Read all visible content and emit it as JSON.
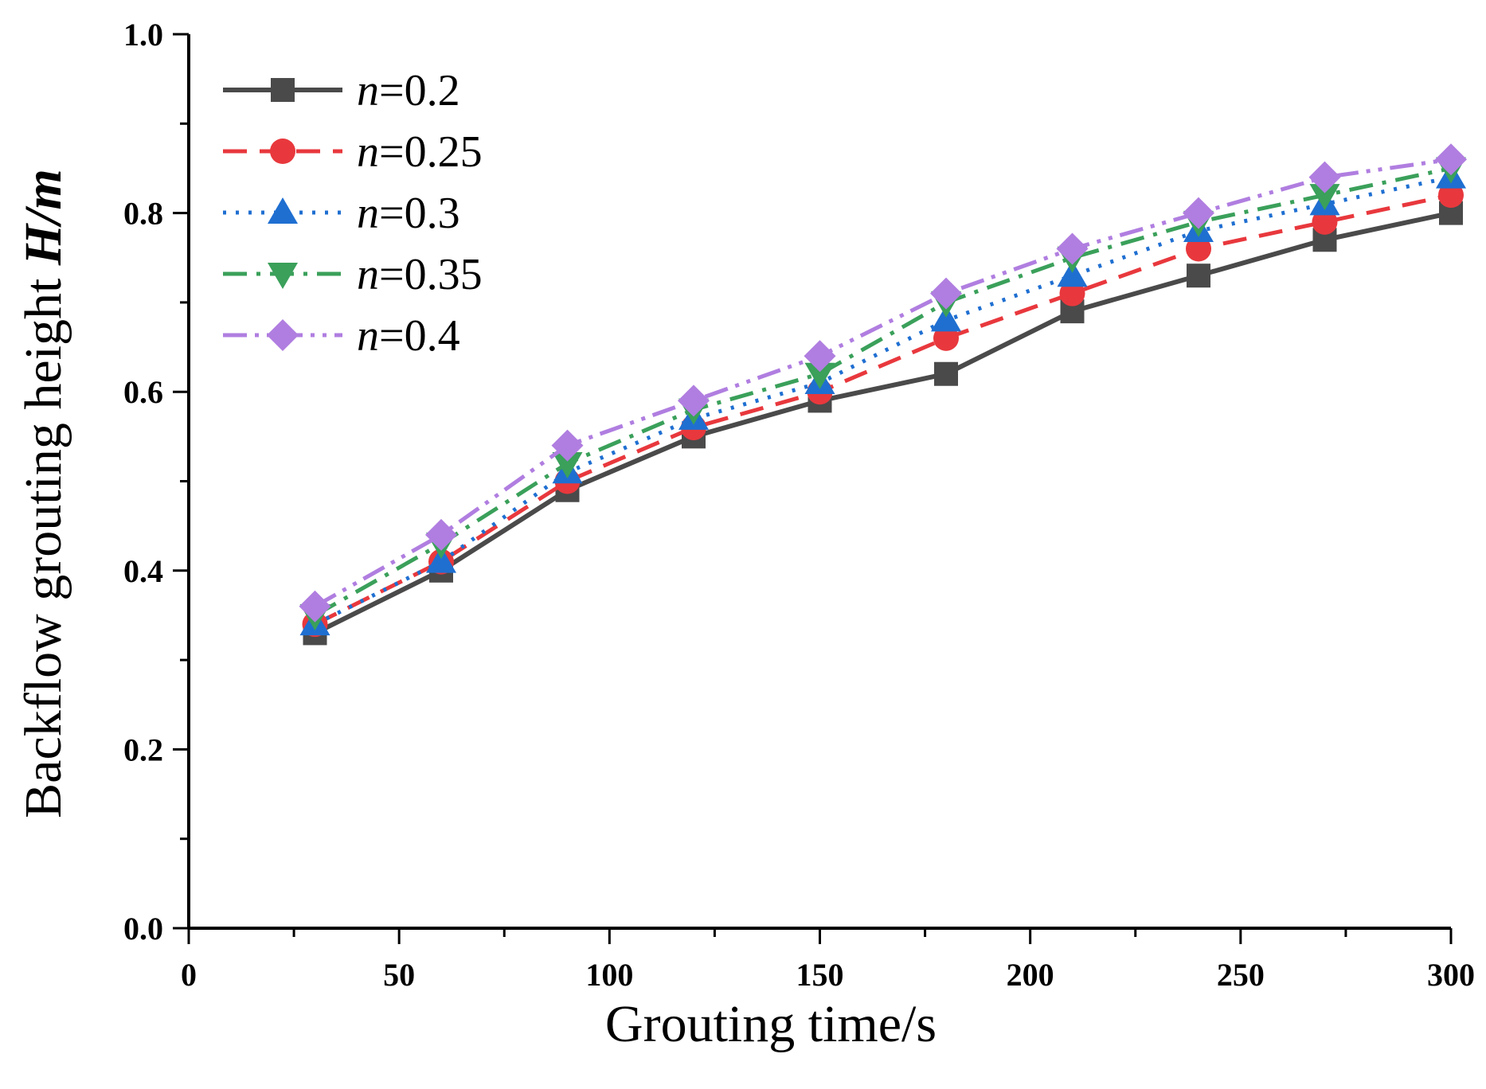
{
  "chart_data": {
    "type": "line",
    "title": "",
    "xlabel": "Grouting time/s",
    "ylabel": {
      "prefix": "Backflow grouting height ",
      "symbol": "H/m"
    },
    "xlim": [
      0,
      300
    ],
    "ylim": [
      0.0,
      1.0
    ],
    "xticks": [
      "0",
      "50",
      "100",
      "150",
      "200",
      "250",
      "300"
    ],
    "yticks": [
      "0.0",
      "0.2",
      "0.4",
      "0.6",
      "0.8",
      "1.0"
    ],
    "x": [
      30,
      60,
      90,
      120,
      150,
      180,
      210,
      240,
      270,
      300
    ],
    "legend_position": "top-left",
    "series": [
      {
        "name": "n=0.2",
        "var": "n",
        "eq": "=0.2",
        "color": "#4a4a4a",
        "marker": "square",
        "line": "solid",
        "values": [
          0.33,
          0.4,
          0.49,
          0.55,
          0.59,
          0.62,
          0.69,
          0.73,
          0.77,
          0.8
        ]
      },
      {
        "name": "n=0.25",
        "var": "n",
        "eq": "=0.25",
        "color": "#e8383d",
        "marker": "circle",
        "line": "dashed",
        "values": [
          0.34,
          0.41,
          0.5,
          0.56,
          0.6,
          0.66,
          0.71,
          0.76,
          0.79,
          0.82
        ]
      },
      {
        "name": "n=0.3",
        "var": "n",
        "eq": "=0.3",
        "color": "#1f6fd1",
        "marker": "triangle-up",
        "line": "dotted",
        "values": [
          0.34,
          0.41,
          0.51,
          0.57,
          0.61,
          0.68,
          0.73,
          0.78,
          0.81,
          0.84
        ]
      },
      {
        "name": "n=0.35",
        "var": "n",
        "eq": "=0.35",
        "color": "#3aa05a",
        "marker": "triangle-down",
        "line": "dashdot",
        "values": [
          0.35,
          0.43,
          0.52,
          0.58,
          0.62,
          0.7,
          0.75,
          0.79,
          0.82,
          0.85
        ]
      },
      {
        "name": "n=0.4",
        "var": "n",
        "eq": "=0.4",
        "color": "#b07ee0",
        "marker": "diamond",
        "line": "dashdotdot",
        "values": [
          0.36,
          0.44,
          0.54,
          0.59,
          0.64,
          0.71,
          0.76,
          0.8,
          0.84,
          0.86
        ]
      }
    ]
  }
}
